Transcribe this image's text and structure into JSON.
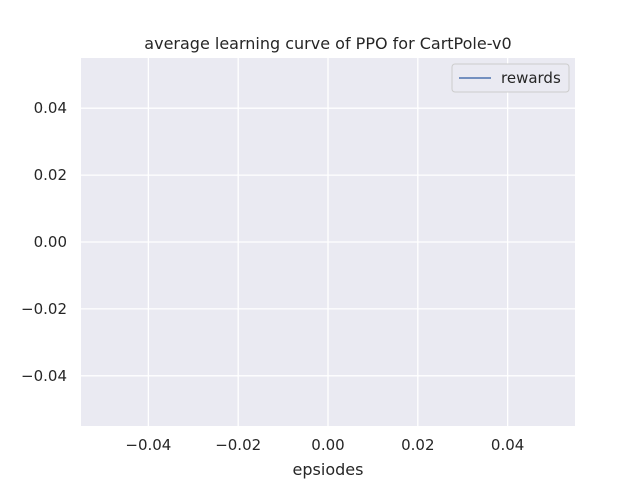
{
  "chart_data": {
    "type": "line",
    "title": "average learning curve of PPO for CartPole-v0",
    "xlabel": "epsiodes",
    "ylabel": "",
    "xlim": [
      -0.055,
      0.055
    ],
    "ylim": [
      -0.055,
      0.055
    ],
    "xticks": [
      -0.04,
      -0.02,
      0.0,
      0.02,
      0.04
    ],
    "xtick_labels": [
      "−0.04",
      "−0.02",
      "0.00",
      "0.02",
      "0.04"
    ],
    "yticks": [
      0.04,
      0.02,
      0.0,
      -0.02,
      -0.04
    ],
    "ytick_labels": [
      "0.04",
      "0.02",
      "0.00",
      "−0.02",
      "−0.04"
    ],
    "grid": true,
    "legend_position": "top-right",
    "series": [
      {
        "name": "rewards",
        "color": "#4c72b0",
        "x": [],
        "y": []
      }
    ],
    "colors": {
      "background": "#eaeaf2",
      "grid": "#ffffff",
      "text": "#262626",
      "legend_bg": "#eaeaf2",
      "legend_border": "#cccccc"
    }
  }
}
